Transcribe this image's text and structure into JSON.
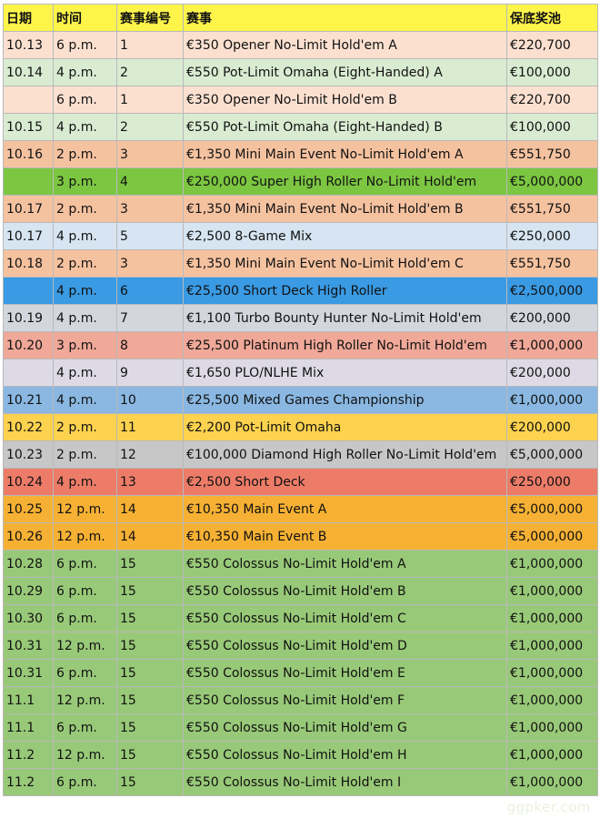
{
  "colors": {
    "header": "#fef54b",
    "peach": "#fbe0d0",
    "pale_green": "#d9ecd2",
    "salmon": "#f5c2a0",
    "bright_green": "#7cc642",
    "light_blue": "#d6e5f1",
    "blue": "#3a9ae3",
    "gray_blue": "#d3d6dd",
    "pink_salmon": "#f0a898",
    "lavender": "#dddae6",
    "sky_blue": "#8ab8e2",
    "yellow_orange": "#fcd24f",
    "gray": "#c7c7c7",
    "red_orange": "#ec7c68",
    "orange": "#f6b134",
    "green": "#98c978"
  },
  "table": {
    "headers": [
      "日期",
      "时间",
      "赛事编号",
      "赛事",
      "保底奖池"
    ],
    "rows": [
      {
        "date": "10.13",
        "time": "6 p.m.",
        "num": "1",
        "event": "€350 Opener No-Limit Hold'em A",
        "gtd": "€220,700",
        "color": "peach"
      },
      {
        "date": "10.14",
        "time": "4 p.m.",
        "num": "2",
        "event": "€550 Pot-Limit Omaha (Eight-Handed) A",
        "gtd": "€100,000",
        "color": "pale_green"
      },
      {
        "date": "",
        "time": "6 p.m.",
        "num": "1",
        "event": "€350 Opener No-Limit Hold'em B",
        "gtd": "€220,700",
        "color": "peach"
      },
      {
        "date": "10.15",
        "time": "4 p.m.",
        "num": "2",
        "event": "€550 Pot-Limit Omaha (Eight-Handed) B",
        "gtd": "€100,000",
        "color": "pale_green"
      },
      {
        "date": "10.16",
        "time": "2 p.m.",
        "num": "3",
        "event": "€1,350 Mini Main Event No-Limit Hold'em A",
        "gtd": "€551,750",
        "color": "salmon"
      },
      {
        "date": "",
        "time": "3 p.m.",
        "num": "4",
        "event": "€250,000 Super High Roller No-Limit Hold'em",
        "gtd": "€5,000,000",
        "color": "bright_green"
      },
      {
        "date": "10.17",
        "time": "2 p.m.",
        "num": "3",
        "event": "€1,350 Mini Main Event No-Limit Hold'em B",
        "gtd": "€551,750",
        "color": "salmon"
      },
      {
        "date": "10.17",
        "time": "4 p.m.",
        "num": "5",
        "event": "€2,500 8-Game Mix",
        "gtd": "€250,000",
        "color": "light_blue"
      },
      {
        "date": "10.18",
        "time": "2 p.m.",
        "num": "3",
        "event": "€1,350 Mini Main Event No-Limit Hold'em C",
        "gtd": "€551,750",
        "color": "salmon"
      },
      {
        "date": "",
        "time": "4 p.m.",
        "num": "6",
        "event": "€25,500 Short Deck High Roller",
        "gtd": "€2,500,000",
        "color": "blue"
      },
      {
        "date": "10.19",
        "time": "4 p.m.",
        "num": "7",
        "event": "€1,100 Turbo Bounty Hunter No-Limit Hold'em",
        "gtd": "€200,000",
        "color": "gray_blue"
      },
      {
        "date": "10.20",
        "time": "3 p.m.",
        "num": "8",
        "event": "€25,500 Platinum High Roller No-Limit Hold'em",
        "gtd": "€1,000,000",
        "color": "pink_salmon"
      },
      {
        "date": "",
        "time": "4 p.m.",
        "num": "9",
        "event": "€1,650 PLO/NLHE Mix",
        "gtd": "€200,000",
        "color": "lavender"
      },
      {
        "date": "10.21",
        "time": "4 p.m.",
        "num": "10",
        "event": "€25,500 Mixed Games Championship",
        "gtd": "€1,000,000",
        "color": "sky_blue"
      },
      {
        "date": "10.22",
        "time": "2 p.m.",
        "num": "11",
        "event": "€2,200 Pot-Limit Omaha",
        "gtd": "€200,000",
        "color": "yellow_orange"
      },
      {
        "date": "10.23",
        "time": "2 p.m.",
        "num": "12",
        "event": "€100,000 Diamond High Roller No-Limit Hold'em",
        "gtd": "€5,000,000",
        "color": "gray"
      },
      {
        "date": "10.24",
        "time": "4 p.m.",
        "num": "13",
        "event": "€2,500 Short Deck",
        "gtd": "€250,000",
        "color": "red_orange"
      },
      {
        "date": "10.25",
        "time": "12 p.m.",
        "num": "14",
        "event": "€10,350 Main Event A",
        "gtd": "€5,000,000",
        "color": "orange"
      },
      {
        "date": "10.26",
        "time": "12 p.m.",
        "num": "14",
        "event": "€10,350 Main Event B",
        "gtd": "€5,000,000",
        "color": "orange"
      },
      {
        "date": "10.28",
        "time": "6 p.m.",
        "num": "15",
        "event": "€550 Colossus No-Limit Hold'em A",
        "gtd": "€1,000,000",
        "color": "green"
      },
      {
        "date": "10.29",
        "time": "6 p.m.",
        "num": "15",
        "event": "€550 Colossus No-Limit Hold'em B",
        "gtd": "€1,000,000",
        "color": "green"
      },
      {
        "date": "10.30",
        "time": "6 p.m.",
        "num": "15",
        "event": "€550 Colossus No-Limit Hold'em C",
        "gtd": "€1,000,000",
        "color": "green"
      },
      {
        "date": "10.31",
        "time": "12 p.m.",
        "num": "15",
        "event": "€550 Colossus No-Limit Hold'em D",
        "gtd": "€1,000,000",
        "color": "green"
      },
      {
        "date": "10.31",
        "time": "6 p.m.",
        "num": "15",
        "event": "€550 Colossus No-Limit Hold'em E",
        "gtd": "€1,000,000",
        "color": "green"
      },
      {
        "date": "11.1",
        "time": "12 p.m.",
        "num": "15",
        "event": "€550 Colossus No-Limit Hold'em F",
        "gtd": "€1,000,000",
        "color": "green"
      },
      {
        "date": "11.1",
        "time": "6 p.m.",
        "num": "15",
        "event": "€550 Colossus No-Limit Hold'em G",
        "gtd": "€1,000,000",
        "color": "green"
      },
      {
        "date": "11.2",
        "time": "12 p.m.",
        "num": "15",
        "event": "€550 Colossus No-Limit Hold'em H",
        "gtd": "€1,000,000",
        "color": "green"
      },
      {
        "date": "11.2",
        "time": "6 p.m.",
        "num": "15",
        "event": "€550 Colossus No-Limit Hold'em I",
        "gtd": "€1,000,000",
        "color": "green"
      }
    ]
  },
  "watermark": "ggpker.com"
}
